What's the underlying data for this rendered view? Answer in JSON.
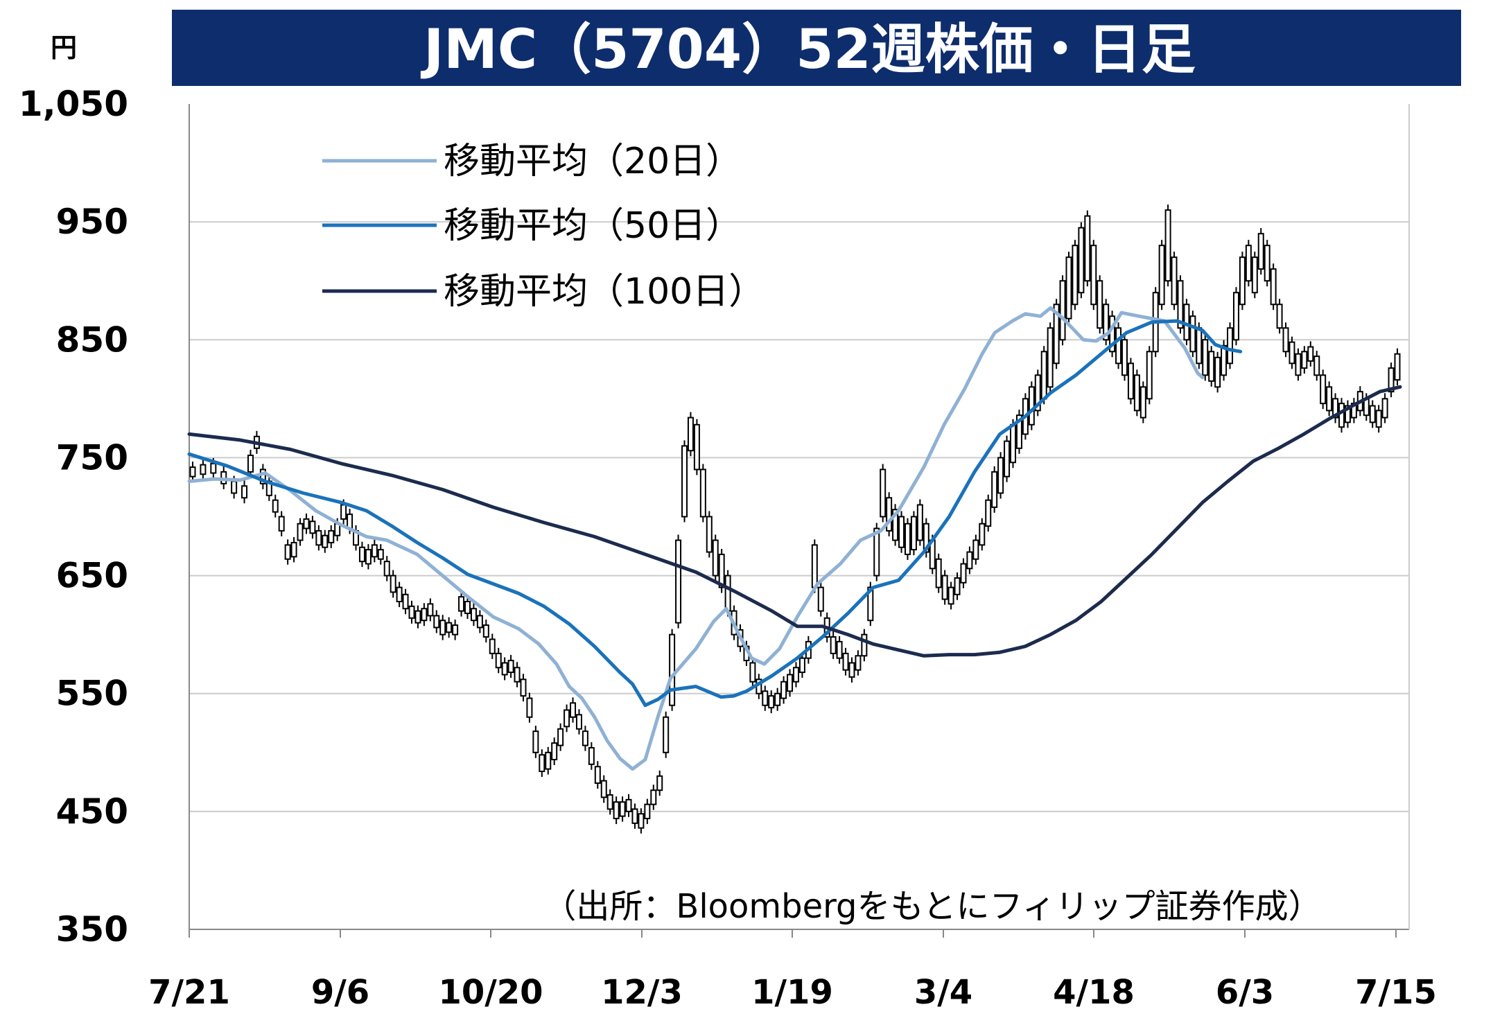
{
  "chart_data": {
    "type": "line",
    "title": "JMC（5704）52週株価・日足",
    "ylabel": "円",
    "ylim": [
      350,
      1050
    ],
    "yticks": [
      "1,050",
      "950",
      "850",
      "750",
      "650",
      "550",
      "450",
      "350"
    ],
    "xticks": [
      "7/21",
      "9/6",
      "10/20",
      "12/3",
      "1/19",
      "3/4",
      "4/18",
      "6/3",
      "7/15"
    ],
    "grid": true,
    "legend_position": "top-left",
    "source": "（出所：Bloombergをもとにフィリップ証券作成）",
    "series": [
      {
        "name": "移動平均（20日）",
        "color": "#8fb1d4",
        "values": [
          [
            0,
            730
          ],
          [
            10,
            732
          ],
          [
            20,
            731
          ],
          [
            30,
            737
          ],
          [
            40,
            722
          ],
          [
            50,
            705
          ],
          [
            60,
            693
          ],
          [
            70,
            683
          ],
          [
            78,
            680
          ],
          [
            85,
            673
          ],
          [
            90,
            668
          ],
          [
            100,
            650
          ],
          [
            110,
            632
          ],
          [
            120,
            615
          ],
          [
            130,
            605
          ],
          [
            138,
            592
          ],
          [
            145,
            575
          ],
          [
            150,
            556
          ],
          [
            155,
            546
          ],
          [
            160,
            530
          ],
          [
            165,
            510
          ],
          [
            170,
            495
          ],
          [
            175,
            486
          ],
          [
            180,
            494
          ],
          [
            185,
            530
          ],
          [
            190,
            563
          ],
          [
            200,
            588
          ],
          [
            207,
            611
          ],
          [
            212,
            622
          ],
          [
            217,
            600
          ],
          [
            222,
            580
          ],
          [
            227,
            575
          ],
          [
            233,
            588
          ],
          [
            240,
            615
          ],
          [
            248,
            643
          ],
          [
            257,
            660
          ],
          [
            265,
            680
          ],
          [
            273,
            688
          ],
          [
            280,
            705
          ],
          [
            290,
            742
          ],
          [
            298,
            778
          ],
          [
            306,
            808
          ],
          [
            313,
            838
          ],
          [
            318,
            856
          ],
          [
            325,
            866
          ],
          [
            330,
            872
          ],
          [
            336,
            870
          ],
          [
            340,
            877
          ],
          [
            345,
            868
          ],
          [
            353,
            850
          ],
          [
            358,
            849
          ],
          [
            363,
            856
          ],
          [
            368,
            873
          ],
          [
            375,
            870
          ],
          [
            385,
            866
          ],
          [
            393,
            843
          ],
          [
            398,
            822
          ],
          [
            400,
            818
          ]
        ]
      },
      {
        "name": "移動平均（50日）",
        "color": "#1a72bb",
        "values": [
          [
            0,
            753
          ],
          [
            15,
            743
          ],
          [
            30,
            730
          ],
          [
            45,
            720
          ],
          [
            60,
            712
          ],
          [
            70,
            705
          ],
          [
            80,
            692
          ],
          [
            90,
            678
          ],
          [
            100,
            665
          ],
          [
            110,
            651
          ],
          [
            120,
            643
          ],
          [
            130,
            635
          ],
          [
            140,
            624
          ],
          [
            150,
            609
          ],
          [
            160,
            590
          ],
          [
            170,
            568
          ],
          [
            175,
            558
          ],
          [
            180,
            540
          ],
          [
            185,
            545
          ],
          [
            190,
            553
          ],
          [
            200,
            556
          ],
          [
            210,
            547
          ],
          [
            215,
            548
          ],
          [
            220,
            552
          ],
          [
            230,
            565
          ],
          [
            240,
            580
          ],
          [
            250,
            598
          ],
          [
            260,
            618
          ],
          [
            270,
            640
          ],
          [
            280,
            646
          ],
          [
            290,
            670
          ],
          [
            300,
            700
          ],
          [
            310,
            738
          ],
          [
            320,
            770
          ],
          [
            330,
            785
          ],
          [
            340,
            805
          ],
          [
            350,
            820
          ],
          [
            360,
            838
          ],
          [
            370,
            856
          ],
          [
            380,
            865
          ],
          [
            390,
            866
          ],
          [
            400,
            858
          ],
          [
            405,
            846
          ],
          [
            410,
            842
          ],
          [
            415,
            840
          ]
        ]
      },
      {
        "name": "移動平均（100日）",
        "color": "#1c2b4d",
        "values": [
          [
            0,
            770
          ],
          [
            20,
            765
          ],
          [
            40,
            757
          ],
          [
            60,
            745
          ],
          [
            80,
            735
          ],
          [
            100,
            723
          ],
          [
            120,
            708
          ],
          [
            140,
            695
          ],
          [
            160,
            683
          ],
          [
            180,
            668
          ],
          [
            200,
            653
          ],
          [
            215,
            637
          ],
          [
            230,
            620
          ],
          [
            240,
            607
          ],
          [
            250,
            607
          ],
          [
            260,
            600
          ],
          [
            270,
            592
          ],
          [
            280,
            587
          ],
          [
            290,
            582
          ],
          [
            300,
            583
          ],
          [
            310,
            583
          ],
          [
            320,
            585
          ],
          [
            330,
            590
          ],
          [
            340,
            600
          ],
          [
            350,
            612
          ],
          [
            360,
            628
          ],
          [
            370,
            648
          ],
          [
            380,
            668
          ],
          [
            390,
            690
          ],
          [
            400,
            712
          ],
          [
            410,
            730
          ],
          [
            420,
            747
          ],
          [
            430,
            758
          ],
          [
            440,
            770
          ],
          [
            450,
            783
          ],
          [
            460,
            795
          ],
          [
            470,
            806
          ],
          [
            478,
            810
          ]
        ]
      }
    ],
    "candles": [
      [
        0,
        734,
        742
      ],
      [
        5,
        736,
        744
      ],
      [
        10,
        737,
        745
      ],
      [
        15,
        728,
        738
      ],
      [
        20,
        720,
        730
      ],
      [
        25,
        716,
        726
      ],
      [
        28,
        738,
        752
      ],
      [
        31,
        758,
        768
      ],
      [
        34,
        728,
        740
      ],
      [
        37,
        718,
        730
      ],
      [
        40,
        704,
        714
      ],
      [
        43,
        688,
        700
      ],
      [
        46,
        664,
        676
      ],
      [
        49,
        666,
        678
      ],
      [
        52,
        680,
        694
      ],
      [
        55,
        690,
        698
      ],
      [
        58,
        686,
        696
      ],
      [
        61,
        676,
        688
      ],
      [
        64,
        674,
        684
      ],
      [
        67,
        678,
        688
      ],
      [
        70,
        684,
        694
      ],
      [
        73,
        698,
        710
      ],
      [
        76,
        690,
        702
      ],
      [
        79,
        676,
        688
      ],
      [
        82,
        662,
        674
      ],
      [
        85,
        660,
        672
      ],
      [
        88,
        666,
        676
      ],
      [
        91,
        664,
        672
      ],
      [
        94,
        650,
        662
      ],
      [
        97,
        636,
        650
      ],
      [
        100,
        628,
        640
      ],
      [
        103,
        622,
        634
      ],
      [
        106,
        614,
        624
      ],
      [
        109,
        610,
        620
      ],
      [
        112,
        612,
        622
      ],
      [
        115,
        616,
        626
      ],
      [
        118,
        606,
        616
      ],
      [
        121,
        600,
        612
      ],
      [
        124,
        602,
        610
      ],
      [
        127,
        600,
        608
      ],
      [
        130,
        620,
        632
      ],
      [
        133,
        618,
        628
      ],
      [
        136,
        612,
        622
      ],
      [
        139,
        606,
        616
      ],
      [
        142,
        598,
        608
      ],
      [
        145,
        584,
        596
      ],
      [
        148,
        572,
        584
      ],
      [
        151,
        566,
        576
      ],
      [
        154,
        568,
        578
      ],
      [
        157,
        560,
        572
      ],
      [
        160,
        548,
        562
      ],
      [
        163,
        530,
        546
      ],
      [
        166,
        500,
        518
      ],
      [
        169,
        484,
        498
      ],
      [
        172,
        486,
        500
      ],
      [
        175,
        494,
        508
      ],
      [
        178,
        506,
        520
      ],
      [
        181,
        522,
        536
      ],
      [
        184,
        530,
        542
      ],
      [
        187,
        520,
        532
      ],
      [
        190,
        506,
        518
      ],
      [
        193,
        490,
        504
      ],
      [
        196,
        474,
        488
      ],
      [
        199,
        462,
        476
      ],
      [
        202,
        452,
        464
      ],
      [
        205,
        444,
        458
      ],
      [
        208,
        446,
        458
      ],
      [
        211,
        450,
        460
      ],
      [
        214,
        440,
        452
      ],
      [
        217,
        436,
        448
      ],
      [
        220,
        444,
        456
      ],
      [
        223,
        456,
        468
      ],
      [
        226,
        468,
        480
      ],
      [
        229,
        500,
        530
      ],
      [
        232,
        540,
        600
      ],
      [
        235,
        610,
        680
      ],
      [
        238,
        700,
        760
      ],
      [
        241,
        756,
        784
      ],
      [
        244,
        740,
        778
      ],
      [
        247,
        700,
        740
      ],
      [
        250,
        670,
        700
      ],
      [
        253,
        650,
        680
      ],
      [
        256,
        640,
        668
      ],
      [
        259,
        620,
        650
      ],
      [
        262,
        600,
        620
      ],
      [
        265,
        590,
        604
      ],
      [
        268,
        578,
        590
      ],
      [
        271,
        560,
        576
      ],
      [
        274,
        550,
        562
      ],
      [
        277,
        540,
        552
      ],
      [
        280,
        538,
        548
      ],
      [
        283,
        540,
        550
      ],
      [
        286,
        546,
        560
      ],
      [
        289,
        552,
        566
      ],
      [
        292,
        560,
        572
      ],
      [
        295,
        568,
        580
      ],
      [
        298,
        580,
        594
      ],
      [
        301,
        640,
        676
      ],
      [
        304,
        620,
        640
      ],
      [
        307,
        598,
        614
      ],
      [
        310,
        584,
        598
      ],
      [
        313,
        580,
        594
      ],
      [
        316,
        570,
        584
      ],
      [
        319,
        564,
        576
      ],
      [
        322,
        570,
        582
      ],
      [
        325,
        582,
        600
      ],
      [
        328,
        612,
        640
      ],
      [
        331,
        650,
        690
      ],
      [
        334,
        700,
        740
      ],
      [
        337,
        688,
        716
      ],
      [
        340,
        680,
        706
      ],
      [
        343,
        674,
        700
      ],
      [
        346,
        668,
        694
      ],
      [
        349,
        672,
        700
      ],
      [
        352,
        680,
        710
      ],
      [
        355,
        670,
        694
      ],
      [
        358,
        656,
        680
      ],
      [
        361,
        640,
        664
      ],
      [
        364,
        630,
        650
      ],
      [
        367,
        626,
        640
      ],
      [
        370,
        634,
        648
      ],
      [
        373,
        644,
        660
      ],
      [
        376,
        656,
        670
      ],
      [
        379,
        664,
        680
      ],
      [
        382,
        676,
        694
      ],
      [
        385,
        692,
        714
      ],
      [
        388,
        708,
        738
      ],
      [
        391,
        720,
        750
      ],
      [
        394,
        734,
        764
      ],
      [
        397,
        746,
        778
      ],
      [
        400,
        758,
        786
      ],
      [
        403,
        770,
        800
      ],
      [
        406,
        778,
        810
      ],
      [
        409,
        790,
        820
      ],
      [
        412,
        800,
        840
      ],
      [
        415,
        810,
        860
      ],
      [
        418,
        830,
        880
      ],
      [
        421,
        850,
        900
      ],
      [
        424,
        868,
        920
      ],
      [
        427,
        880,
        930
      ],
      [
        430,
        890,
        945
      ],
      [
        433,
        900,
        955
      ],
      [
        436,
        880,
        930
      ],
      [
        439,
        860,
        900
      ],
      [
        442,
        850,
        880
      ],
      [
        445,
        840,
        870
      ],
      [
        448,
        830,
        860
      ],
      [
        451,
        820,
        850
      ],
      [
        454,
        800,
        830
      ],
      [
        457,
        790,
        820
      ],
      [
        460,
        784,
        810
      ],
      [
        463,
        800,
        840
      ],
      [
        466,
        840,
        890
      ],
      [
        469,
        880,
        930
      ],
      [
        472,
        900,
        960
      ],
      [
        475,
        880,
        920
      ],
      [
        478,
        860,
        900
      ],
      [
        481,
        850,
        880
      ],
      [
        484,
        840,
        870
      ],
      [
        487,
        830,
        860
      ],
      [
        490,
        820,
        850
      ],
      [
        493,
        815,
        840
      ],
      [
        496,
        810,
        835
      ],
      [
        499,
        820,
        845
      ],
      [
        502,
        830,
        860
      ],
      [
        505,
        850,
        890
      ],
      [
        508,
        880,
        920
      ],
      [
        511,
        900,
        930
      ],
      [
        514,
        890,
        920
      ],
      [
        517,
        910,
        940
      ],
      [
        520,
        900,
        930
      ],
      [
        523,
        880,
        910
      ],
      [
        526,
        860,
        880
      ],
      [
        529,
        840,
        860
      ],
      [
        532,
        830,
        848
      ],
      [
        535,
        820,
        838
      ],
      [
        538,
        826,
        840
      ],
      [
        541,
        832,
        844
      ],
      [
        544,
        820,
        836
      ],
      [
        547,
        796,
        820
      ],
      [
        550,
        790,
        810
      ],
      [
        553,
        784,
        800
      ],
      [
        556,
        776,
        796
      ],
      [
        559,
        780,
        794
      ],
      [
        562,
        784,
        796
      ],
      [
        565,
        790,
        806
      ],
      [
        568,
        786,
        800
      ],
      [
        571,
        780,
        794
      ],
      [
        574,
        776,
        790
      ],
      [
        577,
        784,
        800
      ],
      [
        580,
        806,
        826
      ],
      [
        583,
        816,
        838
      ]
    ]
  }
}
